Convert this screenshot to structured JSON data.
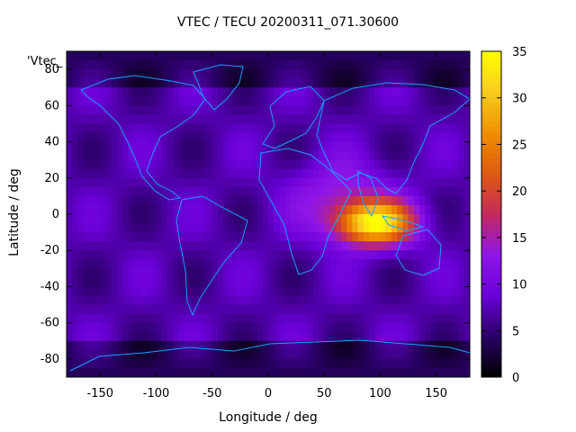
{
  "chart_data": {
    "type": "heatmap",
    "title": "VTEC / TECU 20200311_071.30600",
    "series_key": "'Vtec_",
    "xlabel": "Longitude / deg",
    "ylabel": "Latitude / deg",
    "xlim": [
      -180,
      180
    ],
    "ylim": [
      -90,
      90
    ],
    "xticks": [
      -150,
      -100,
      -50,
      0,
      50,
      100,
      150
    ],
    "yticks": [
      -80,
      -60,
      -40,
      -20,
      0,
      20,
      40,
      60,
      80
    ],
    "colorbar": {
      "min": 0,
      "max": 35,
      "ticks": [
        0,
        5,
        10,
        15,
        20,
        25,
        30,
        35
      ]
    },
    "colormap": [
      "#000000",
      "#2a0066",
      "#6a00d8",
      "#8f16e8",
      "#c42a5c",
      "#df5a10",
      "#f09000",
      "#f8cc20",
      "#ffff00"
    ],
    "background_level": 7,
    "peak": {
      "lon": 95,
      "lat": -5,
      "value": 33
    },
    "secondary_peak": {
      "lon": 65,
      "lat": 10,
      "value": 22
    },
    "coastline_color": "#1aa0ff",
    "grid": false
  }
}
